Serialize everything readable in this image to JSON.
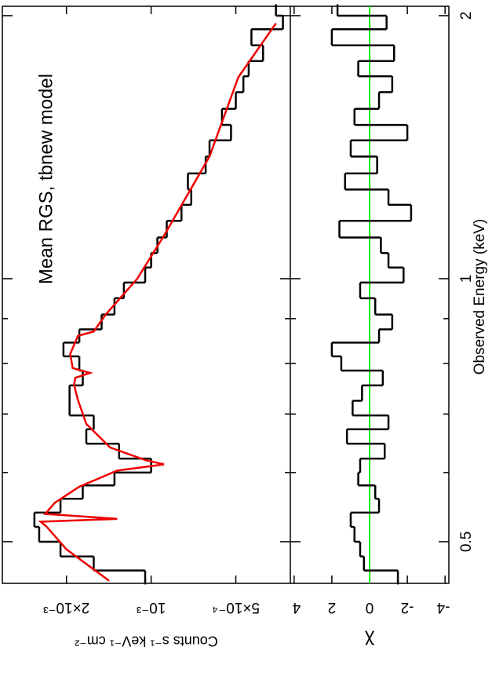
{
  "chart_data": [
    {
      "type": "step",
      "title": "Mean RGS, tbnew model",
      "ylabel": "Counts s⁻¹ keV⁻¹ cm⁻²",
      "xlim": [
        0.448,
        2.05
      ],
      "xlog": true,
      "ylim": [
        0.00032,
        0.00338
      ],
      "ylog": true,
      "yticks": [
        {
          "value": 0.002,
          "label": "2×10⁻³"
        },
        {
          "value": 0.001,
          "label": "10⁻³"
        },
        {
          "value": 0.0005,
          "label": "5×10⁻⁴"
        }
      ],
      "series": [
        {
          "color": "#000000",
          "x": [
            0.455,
            0.472,
            0.49,
            0.51,
            0.53,
            0.55,
            0.57,
            0.59,
            0.61,
            0.635,
            0.66,
            0.685,
            0.71,
            0.74,
            0.77,
            0.8,
            0.83,
            0.86,
            0.89,
            0.93,
            0.97,
            1.01,
            1.05,
            1.09,
            1.14,
            1.19,
            1.24,
            1.29,
            1.35,
            1.41,
            1.47,
            1.53,
            1.6,
            1.67,
            1.74,
            1.81,
            1.89,
            1.97,
            2.03
          ],
          "values": [
            0.00105,
            0.0016,
            0.0021,
            0.0025,
            0.0026,
            0.0021,
            0.00175,
            0.00135,
            0.001,
            0.0013,
            0.0017,
            0.0016,
            0.00195,
            0.00195,
            0.00175,
            0.0018,
            0.00205,
            0.0018,
            0.0015,
            0.00135,
            0.00125,
            0.00105,
            0.001,
            0.00095,
            0.00088,
            0.00078,
            0.00072,
            0.00074,
            0.00064,
            0.00062,
            0.00052,
            0.00056,
            0.0005,
            0.00047,
            0.00045,
            0.0004,
            0.00044,
            0.00034,
            0.00036
          ]
        },
        {
          "color": "#ee0000",
          "type": "line",
          "x": [
            0.451,
            0.49,
            0.52,
            0.527,
            0.531,
            0.538,
            0.554,
            0.578,
            0.603,
            0.613,
            0.62,
            0.641,
            0.682,
            0.726,
            0.756,
            0.77,
            0.78,
            0.79,
            0.82,
            0.86,
            0.87,
            0.91,
            1.0,
            1.12,
            1.38,
            1.7,
            1.96
          ],
          "values": [
            0.00141,
            0.002,
            0.00235,
            0.00247,
            0.00132,
            0.00238,
            0.0022,
            0.0018,
            0.00132,
            0.0009,
            0.00105,
            0.0014,
            0.0017,
            0.00182,
            0.00188,
            0.00186,
            0.00165,
            0.0019,
            0.00194,
            0.00182,
            0.0016,
            0.00145,
            0.00112,
            0.0009,
            0.00062,
            0.00049,
            0.00036
          ]
        }
      ]
    },
    {
      "type": "step",
      "ylabel": "χ",
      "xlabel": "Observed Energy (keV)",
      "xlim": [
        0.448,
        2.05
      ],
      "xlog": true,
      "xticks": [
        0.5,
        1,
        2
      ],
      "xminor": [
        0.6,
        0.7,
        0.8,
        0.9
      ],
      "ylim": [
        -4.2,
        4.2
      ],
      "yticks": [
        4,
        2,
        0,
        -2,
        -4
      ],
      "reference_line": {
        "value": 0,
        "color": "#00ee00"
      },
      "series": [
        {
          "color": "#000000",
          "x": [
            0.455,
            0.472,
            0.49,
            0.51,
            0.53,
            0.55,
            0.57,
            0.59,
            0.61,
            0.635,
            0.66,
            0.685,
            0.71,
            0.74,
            0.77,
            0.8,
            0.83,
            0.86,
            0.89,
            0.93,
            0.97,
            1.01,
            1.05,
            1.09,
            1.14,
            1.19,
            1.24,
            1.29,
            1.35,
            1.41,
            1.47,
            1.53,
            1.6,
            1.67,
            1.74,
            1.81,
            1.89,
            1.97,
            2.03
          ],
          "values": [
            -1.5,
            0.3,
            0.5,
            0.8,
            1.0,
            -0.5,
            -0.3,
            0.6,
            0.5,
            -0.8,
            1.2,
            -1.0,
            0.9,
            0.4,
            -0.7,
            1.5,
            2.0,
            -0.5,
            -1.2,
            -0.3,
            0.5,
            -1.8,
            -1.0,
            -0.6,
            1.6,
            -2.2,
            -1.0,
            1.3,
            -0.4,
            1.0,
            -2.0,
            0.8,
            -0.5,
            -1.2,
            0.6,
            -1.3,
            2.0,
            -0.9,
            1.7
          ]
        }
      ]
    }
  ]
}
